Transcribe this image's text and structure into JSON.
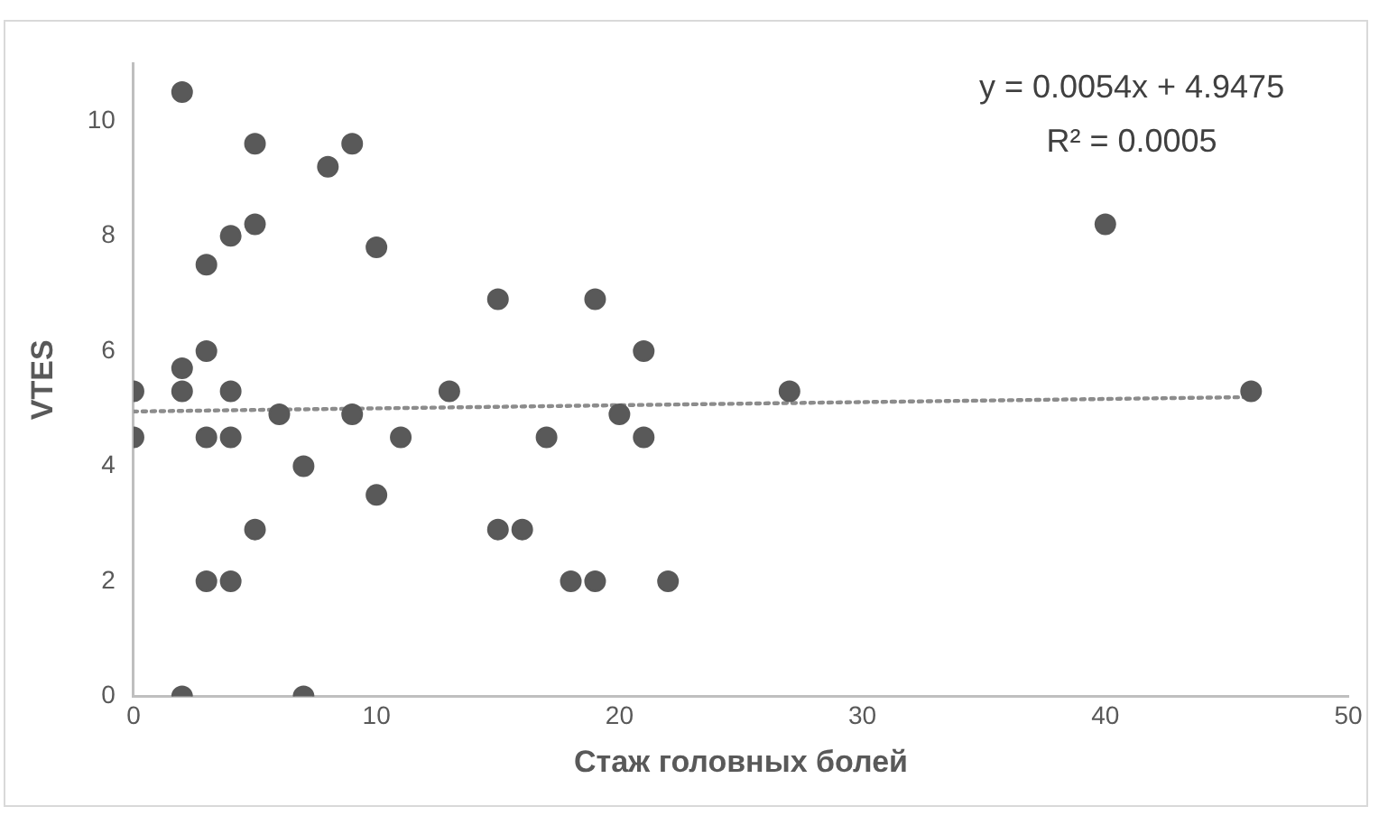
{
  "chart_data": {
    "type": "scatter",
    "xlabel": "Стаж головных болей",
    "ylabel": "VTES",
    "xlim": [
      0,
      50
    ],
    "xticks": [
      0,
      10,
      20,
      30,
      40,
      50
    ],
    "ylim": [
      0,
      11
    ],
    "yticks": [
      0,
      2,
      4,
      6,
      8,
      10
    ],
    "grid": false,
    "legend": false,
    "marker": "circle",
    "series": [
      {
        "type": "scatter",
        "color": "#595959",
        "x": [
          0,
          0,
          2,
          2,
          2,
          2,
          3,
          3,
          3,
          3,
          4,
          4,
          4,
          4,
          5,
          5,
          5,
          6,
          7,
          7,
          8,
          9,
          9,
          10,
          10,
          11,
          13,
          15,
          15,
          16,
          17,
          18,
          19,
          19,
          20,
          21,
          21,
          22,
          27,
          40,
          46
        ],
        "values": [
          5.3,
          4.5,
          10.5,
          5.7,
          5.3,
          0,
          7.5,
          6,
          4.5,
          2,
          8,
          5.3,
          4.5,
          2,
          9.6,
          8.2,
          2.9,
          4.9,
          4,
          0,
          9.2,
          9.6,
          4.9,
          7.8,
          3.5,
          4.5,
          5.3,
          6.9,
          2.9,
          2.9,
          4.5,
          2,
          6.9,
          2,
          4.9,
          6,
          4.5,
          2,
          5.3,
          8.2,
          5.3
        ]
      },
      {
        "type": "line",
        "color": "#8c8c8c",
        "line_style": "dotted",
        "marker": "none",
        "x": [
          0,
          46
        ],
        "values": [
          4.95,
          5.2
        ]
      }
    ],
    "annotations": [
      "y = 0.0054x + 4.9475",
      "R² = 0.0005"
    ]
  }
}
